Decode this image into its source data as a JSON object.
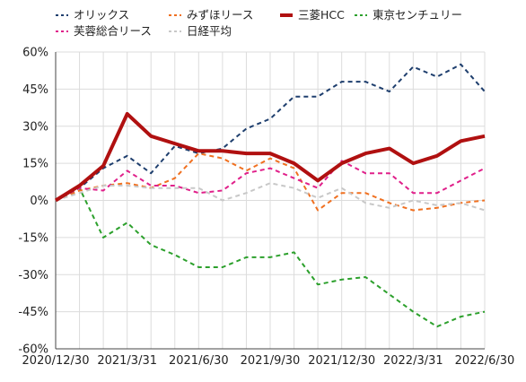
{
  "chart_data": {
    "type": "line",
    "title": "",
    "xlabel": "",
    "ylabel": "",
    "ylim": [
      -60,
      60
    ],
    "y_ticks": [
      "60%",
      "45%",
      "30%",
      "15%",
      "0%",
      "-15%",
      "-30%",
      "-45%",
      "-60%"
    ],
    "x_tick_labels": [
      "2020/12/30",
      "2021/3/31",
      "2021/6/30",
      "2021/9/30",
      "2021/12/30",
      "2022/3/31",
      "2022/6/30"
    ],
    "grid": true,
    "legend_placement": "top",
    "x": [
      "2020/12/30",
      "2021/1/29",
      "2021/2/26",
      "2021/3/31",
      "2021/4/30",
      "2021/5/31",
      "2021/6/30",
      "2021/7/30",
      "2021/8/31",
      "2021/9/30",
      "2021/10/29",
      "2021/11/30",
      "2021/12/30",
      "2022/1/31",
      "2022/2/28",
      "2022/3/31",
      "2022/4/28",
      "2022/5/31",
      "2022/6/30"
    ],
    "series": [
      {
        "name": "オリックス",
        "color": "#1f3f6e",
        "style": "dashed",
        "values": [
          0,
          5,
          13,
          18,
          11,
          22,
          19,
          21,
          29,
          33,
          42,
          42,
          48,
          48,
          44,
          54,
          50,
          55,
          44
        ]
      },
      {
        "name": "みずほリース",
        "color": "#f07020",
        "style": "dashed",
        "values": [
          0,
          4,
          6,
          7,
          5,
          9,
          19,
          17,
          12,
          17,
          13,
          -4,
          3,
          3,
          -1,
          -4,
          -3,
          -1,
          0
        ]
      },
      {
        "name": "三菱HCC",
        "color": "#b01010",
        "style": "solid",
        "values": [
          0,
          6,
          14,
          35,
          26,
          23,
          20,
          20,
          19,
          19,
          15,
          8,
          15,
          19,
          21,
          15,
          18,
          24,
          26
        ]
      },
      {
        "name": "東京センチュリー",
        "color": "#2ca02c",
        "style": "dashed",
        "values": [
          0,
          5,
          -15,
          -9,
          -18,
          -22,
          -27,
          -27,
          -23,
          -23,
          -21,
          -34,
          -32,
          -31,
          -38,
          -45,
          -51,
          -47,
          -45
        ]
      },
      {
        "name": "芙蓉総合リース",
        "color": "#e0208a",
        "style": "dashed",
        "values": [
          0,
          5,
          4,
          12,
          6,
          6,
          3,
          4,
          11,
          13,
          9,
          5,
          16,
          11,
          11,
          3,
          3,
          8,
          13
        ]
      },
      {
        "name": "日経平均",
        "color": "#c8c8c8",
        "style": "dashed",
        "values": [
          0,
          3,
          6,
          6,
          5,
          5,
          5,
          0,
          3,
          7,
          5,
          1,
          5,
          -1,
          -3,
          0,
          -2,
          -1,
          -4
        ]
      }
    ]
  }
}
